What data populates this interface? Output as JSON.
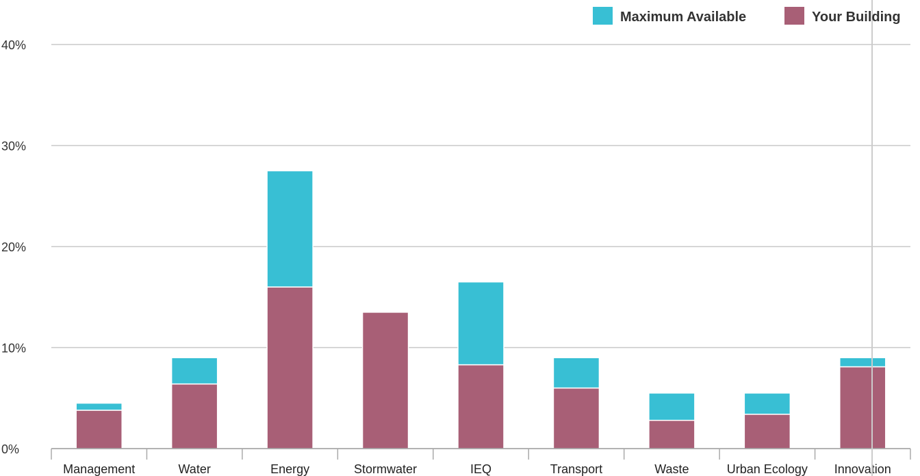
{
  "chart_data": {
    "type": "bar",
    "stacked": true,
    "categories": [
      "Management",
      "Water",
      "Energy",
      "Stormwater",
      "IEQ",
      "Transport",
      "Waste",
      "Urban Ecology",
      "Innovation"
    ],
    "series": [
      {
        "name": "Your Building",
        "color": "#a85f76",
        "values": [
          3.8,
          6.4,
          16.0,
          13.5,
          8.3,
          6.0,
          2.8,
          3.4,
          8.1
        ]
      },
      {
        "name": "Maximum Available",
        "color": "#38bfd4",
        "values": [
          0.7,
          2.6,
          11.5,
          0,
          8.2,
          3.0,
          2.7,
          2.1,
          0.9
        ]
      }
    ],
    "y_ticks": [
      "0%",
      "10%",
      "20%",
      "30%",
      "40%"
    ],
    "ylim": [
      0,
      40
    ],
    "grid": true,
    "legend": {
      "position": "top-right",
      "items": [
        {
          "label": "Maximum Available",
          "color": "#38bfd4"
        },
        {
          "label": "Your Building",
          "color": "#a85f76"
        }
      ]
    }
  }
}
